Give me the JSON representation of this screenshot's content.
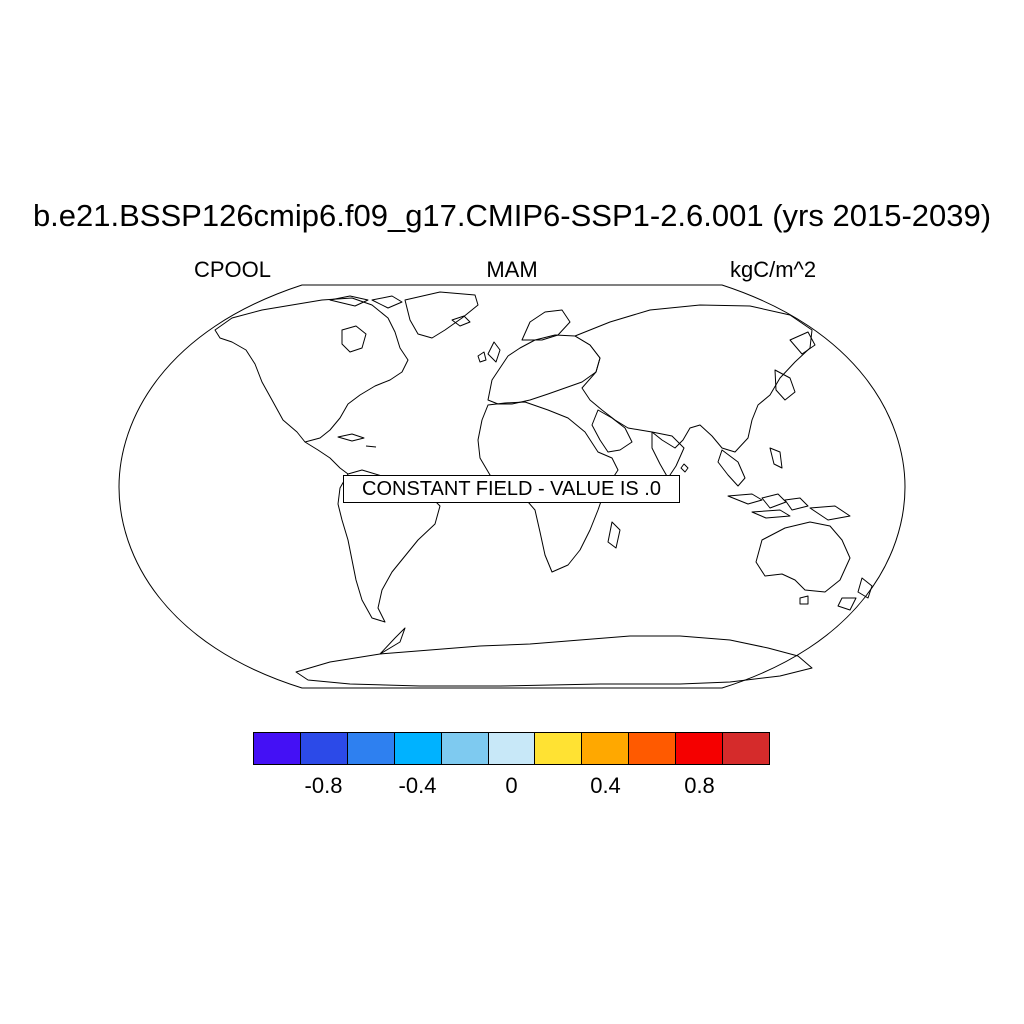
{
  "header": {
    "title": "b.e21.BSSP126cmip6.f09_g17.CMIP6-SSP1-2.6.001 (yrs 2015-2039)",
    "variable": "CPOOL",
    "season": "MAM",
    "units": "kgC/m^2"
  },
  "map": {
    "projection": "Robinson",
    "notice": "CONSTANT FIELD - VALUE IS .0"
  },
  "colorbar": {
    "colors": [
      "#4410F5",
      "#2C4AE8",
      "#2E80F0",
      "#00B2FF",
      "#7ECAF0",
      "#C8E8F8",
      "#FFE233",
      "#FFA800",
      "#FF5A00",
      "#F50000",
      "#D52B2B"
    ],
    "ticks": [
      {
        "value": -0.8,
        "label": "-0.8"
      },
      {
        "value": -0.4,
        "label": "-0.4"
      },
      {
        "value": 0,
        "label": "0"
      },
      {
        "value": 0.4,
        "label": "0.4"
      },
      {
        "value": 0.8,
        "label": "0.8"
      }
    ],
    "range": [
      -1.1,
      1.1
    ]
  }
}
